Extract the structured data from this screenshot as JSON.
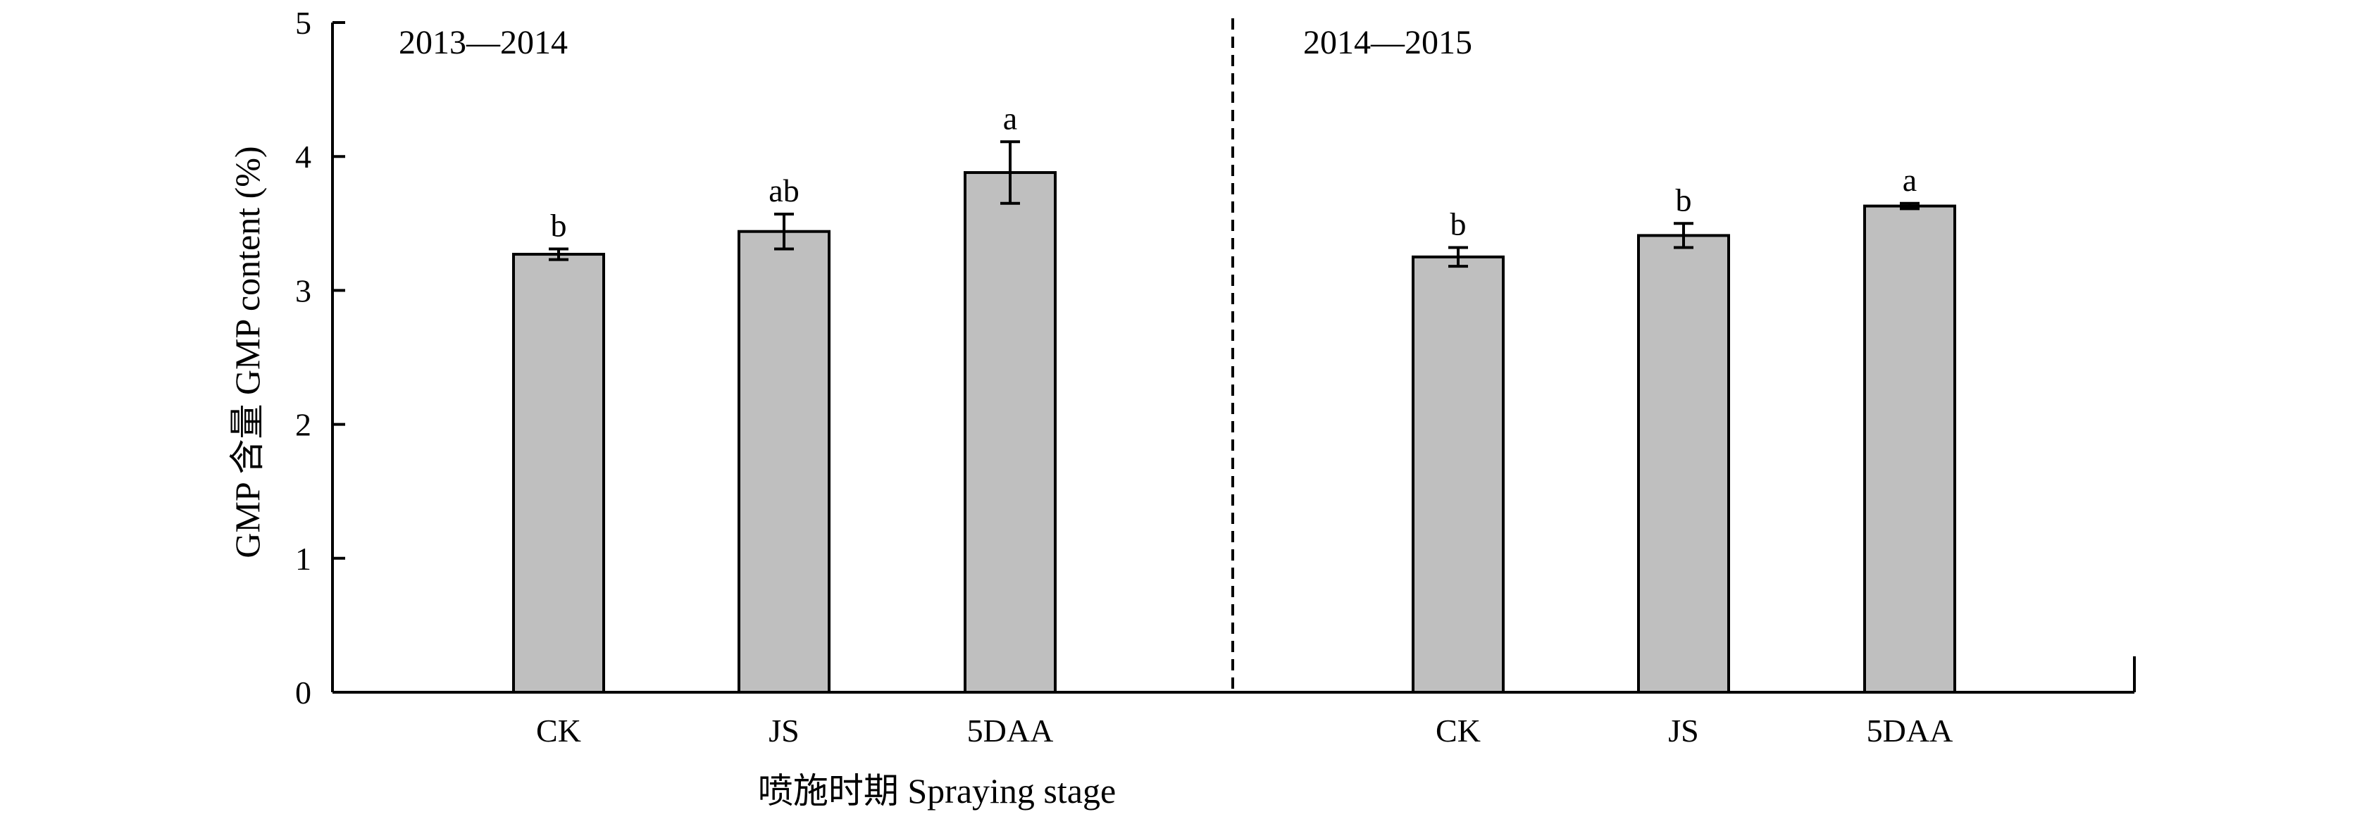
{
  "chart_data": {
    "type": "bar",
    "title": "",
    "xlabel": "喷施时期 Spraying stage",
    "ylabel": "GMP 含量 GMP content (%)",
    "ylim": [
      0,
      5
    ],
    "yticks": [
      "0",
      "1",
      "2",
      "3",
      "4",
      "5"
    ],
    "grid": false,
    "legend": "none",
    "bar_color": "#bfbfbf",
    "panels": [
      {
        "label": "2013—2014",
        "categories": [
          "CK",
          "JS",
          "5DAA"
        ],
        "values": [
          3.27,
          3.44,
          3.88
        ],
        "errors": [
          0.04,
          0.13,
          0.23
        ],
        "significance": [
          "b",
          "ab",
          "a"
        ]
      },
      {
        "label": "2014—2015",
        "categories": [
          "CK",
          "JS",
          "5DAA"
        ],
        "values": [
          3.25,
          3.41,
          3.63
        ],
        "errors": [
          0.07,
          0.09,
          0.02
        ],
        "significance": [
          "b",
          "b",
          "a"
        ]
      }
    ]
  }
}
